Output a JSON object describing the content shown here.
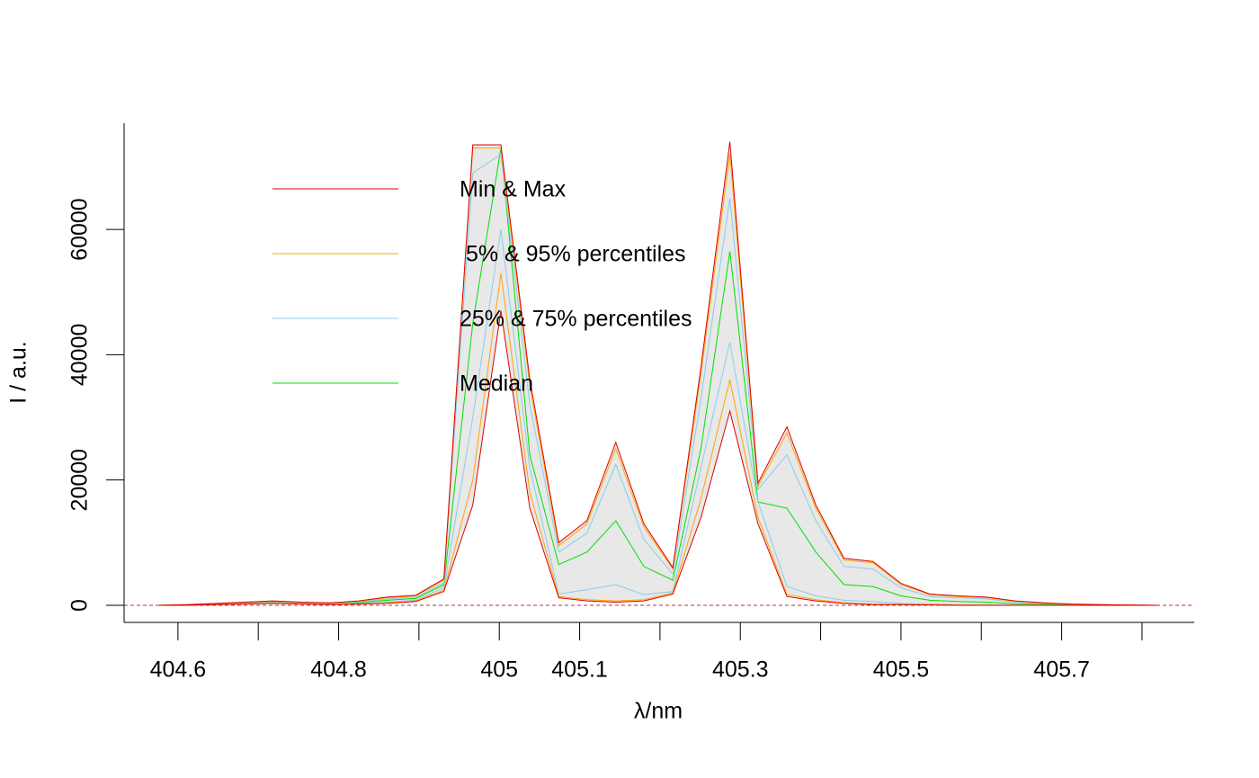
{
  "chart_data": {
    "type": "band",
    "xlabel": "λ/nm",
    "ylabel": "I / a.u.",
    "x": [
      404.576,
      404.612,
      404.647,
      404.683,
      404.718,
      404.754,
      404.789,
      404.825,
      404.86,
      404.896,
      404.931,
      404.967,
      405.002,
      405.038,
      405.074,
      405.109,
      405.145,
      405.18,
      405.216,
      405.251,
      405.287,
      405.322,
      405.358,
      405.394,
      405.429,
      405.465,
      405.5,
      405.536,
      405.571,
      405.607,
      405.642,
      405.678,
      405.713,
      405.749,
      405.784,
      405.82
    ],
    "band_color": "#e8e8e8",
    "series": [
      {
        "name": "Min & Max",
        "color": "#e00000",
        "lower": [
          0,
          0,
          100,
          200,
          300,
          200,
          100,
          200,
          300,
          600,
          2200,
          16000,
          47000,
          15500,
          1200,
          700,
          500,
          700,
          1800,
          14000,
          31000,
          13000,
          1400,
          700,
          300,
          100,
          100,
          50,
          0,
          0,
          0,
          0,
          0,
          0,
          0,
          0
        ],
        "upper": [
          0,
          100,
          300,
          500,
          700,
          500,
          400,
          700,
          1300,
          1600,
          4200,
          73500,
          73500,
          36000,
          10000,
          13500,
          26000,
          13000,
          6000,
          38000,
          74000,
          19500,
          28500,
          16000,
          7500,
          7000,
          3500,
          1800,
          1500,
          1300,
          700,
          400,
          200,
          100,
          50,
          0
        ]
      },
      {
        "name": " 5% & 95% percentiles",
        "color": "#ffa500",
        "lower": [
          0,
          50,
          150,
          250,
          350,
          250,
          150,
          250,
          400,
          700,
          2400,
          20000,
          53000,
          18000,
          1400,
          900,
          700,
          900,
          2000,
          17000,
          36000,
          14000,
          1700,
          900,
          400,
          200,
          150,
          100,
          50,
          30,
          20,
          10,
          0,
          0,
          0,
          0
        ],
        "upper": [
          0,
          100,
          280,
          480,
          650,
          480,
          380,
          650,
          1200,
          1500,
          4000,
          73000,
          73000,
          35000,
          9500,
          13000,
          25000,
          12500,
          5800,
          37000,
          72000,
          19000,
          27500,
          15500,
          7200,
          6800,
          3300,
          1700,
          1400,
          1200,
          650,
          380,
          180,
          90,
          40,
          0
        ]
      },
      {
        "name": "25% & 75% percentiles",
        "color": "#87ceeb",
        "lower": [
          0,
          60,
          180,
          300,
          400,
          300,
          200,
          300,
          500,
          800,
          2800,
          30000,
          60000,
          22000,
          1800,
          2500,
          3300,
          1700,
          2200,
          22000,
          42000,
          16500,
          3000,
          1500,
          800,
          600,
          300,
          200,
          100,
          60,
          30,
          15,
          5,
          0,
          0,
          0
        ],
        "upper": [
          0,
          90,
          250,
          420,
          580,
          420,
          320,
          550,
          1000,
          1300,
          3600,
          69000,
          72000,
          32000,
          8500,
          11500,
          22500,
          10500,
          5000,
          33000,
          65000,
          18500,
          24000,
          13500,
          6200,
          5800,
          2800,
          1400,
          1200,
          1000,
          500,
          300,
          150,
          70,
          30,
          0
        ]
      },
      {
        "name": "Median",
        "color": "#00e000",
        "values": [
          0,
          80,
          220,
          380,
          500,
          380,
          260,
          420,
          800,
          1100,
          3300,
          45000,
          73000,
          24000,
          6500,
          8500,
          13500,
          6200,
          4000,
          25000,
          56500,
          16500,
          15500,
          8500,
          3300,
          3000,
          1500,
          800,
          600,
          500,
          250,
          150,
          70,
          30,
          10,
          0
        ]
      }
    ],
    "reference_line": 0,
    "reference_color": "#b03040",
    "xlim": [
      404.533,
      405.865
    ],
    "ylim": [
      -2730,
      76950
    ],
    "xticks": [
      404.6,
      {
        "value": 404.7,
        "label": null
      },
      404.8,
      {
        "value": 404.9,
        "label": null
      },
      405,
      405.1,
      {
        "value": 405.2,
        "label": null
      },
      405.3,
      {
        "value": 405.4,
        "label": null
      },
      405.5,
      {
        "value": 405.6,
        "label": null
      },
      405.7,
      {
        "value": 405.8,
        "label": null
      }
    ],
    "yticks": [
      0,
      20000,
      40000,
      60000
    ],
    "legend": "top-left"
  }
}
